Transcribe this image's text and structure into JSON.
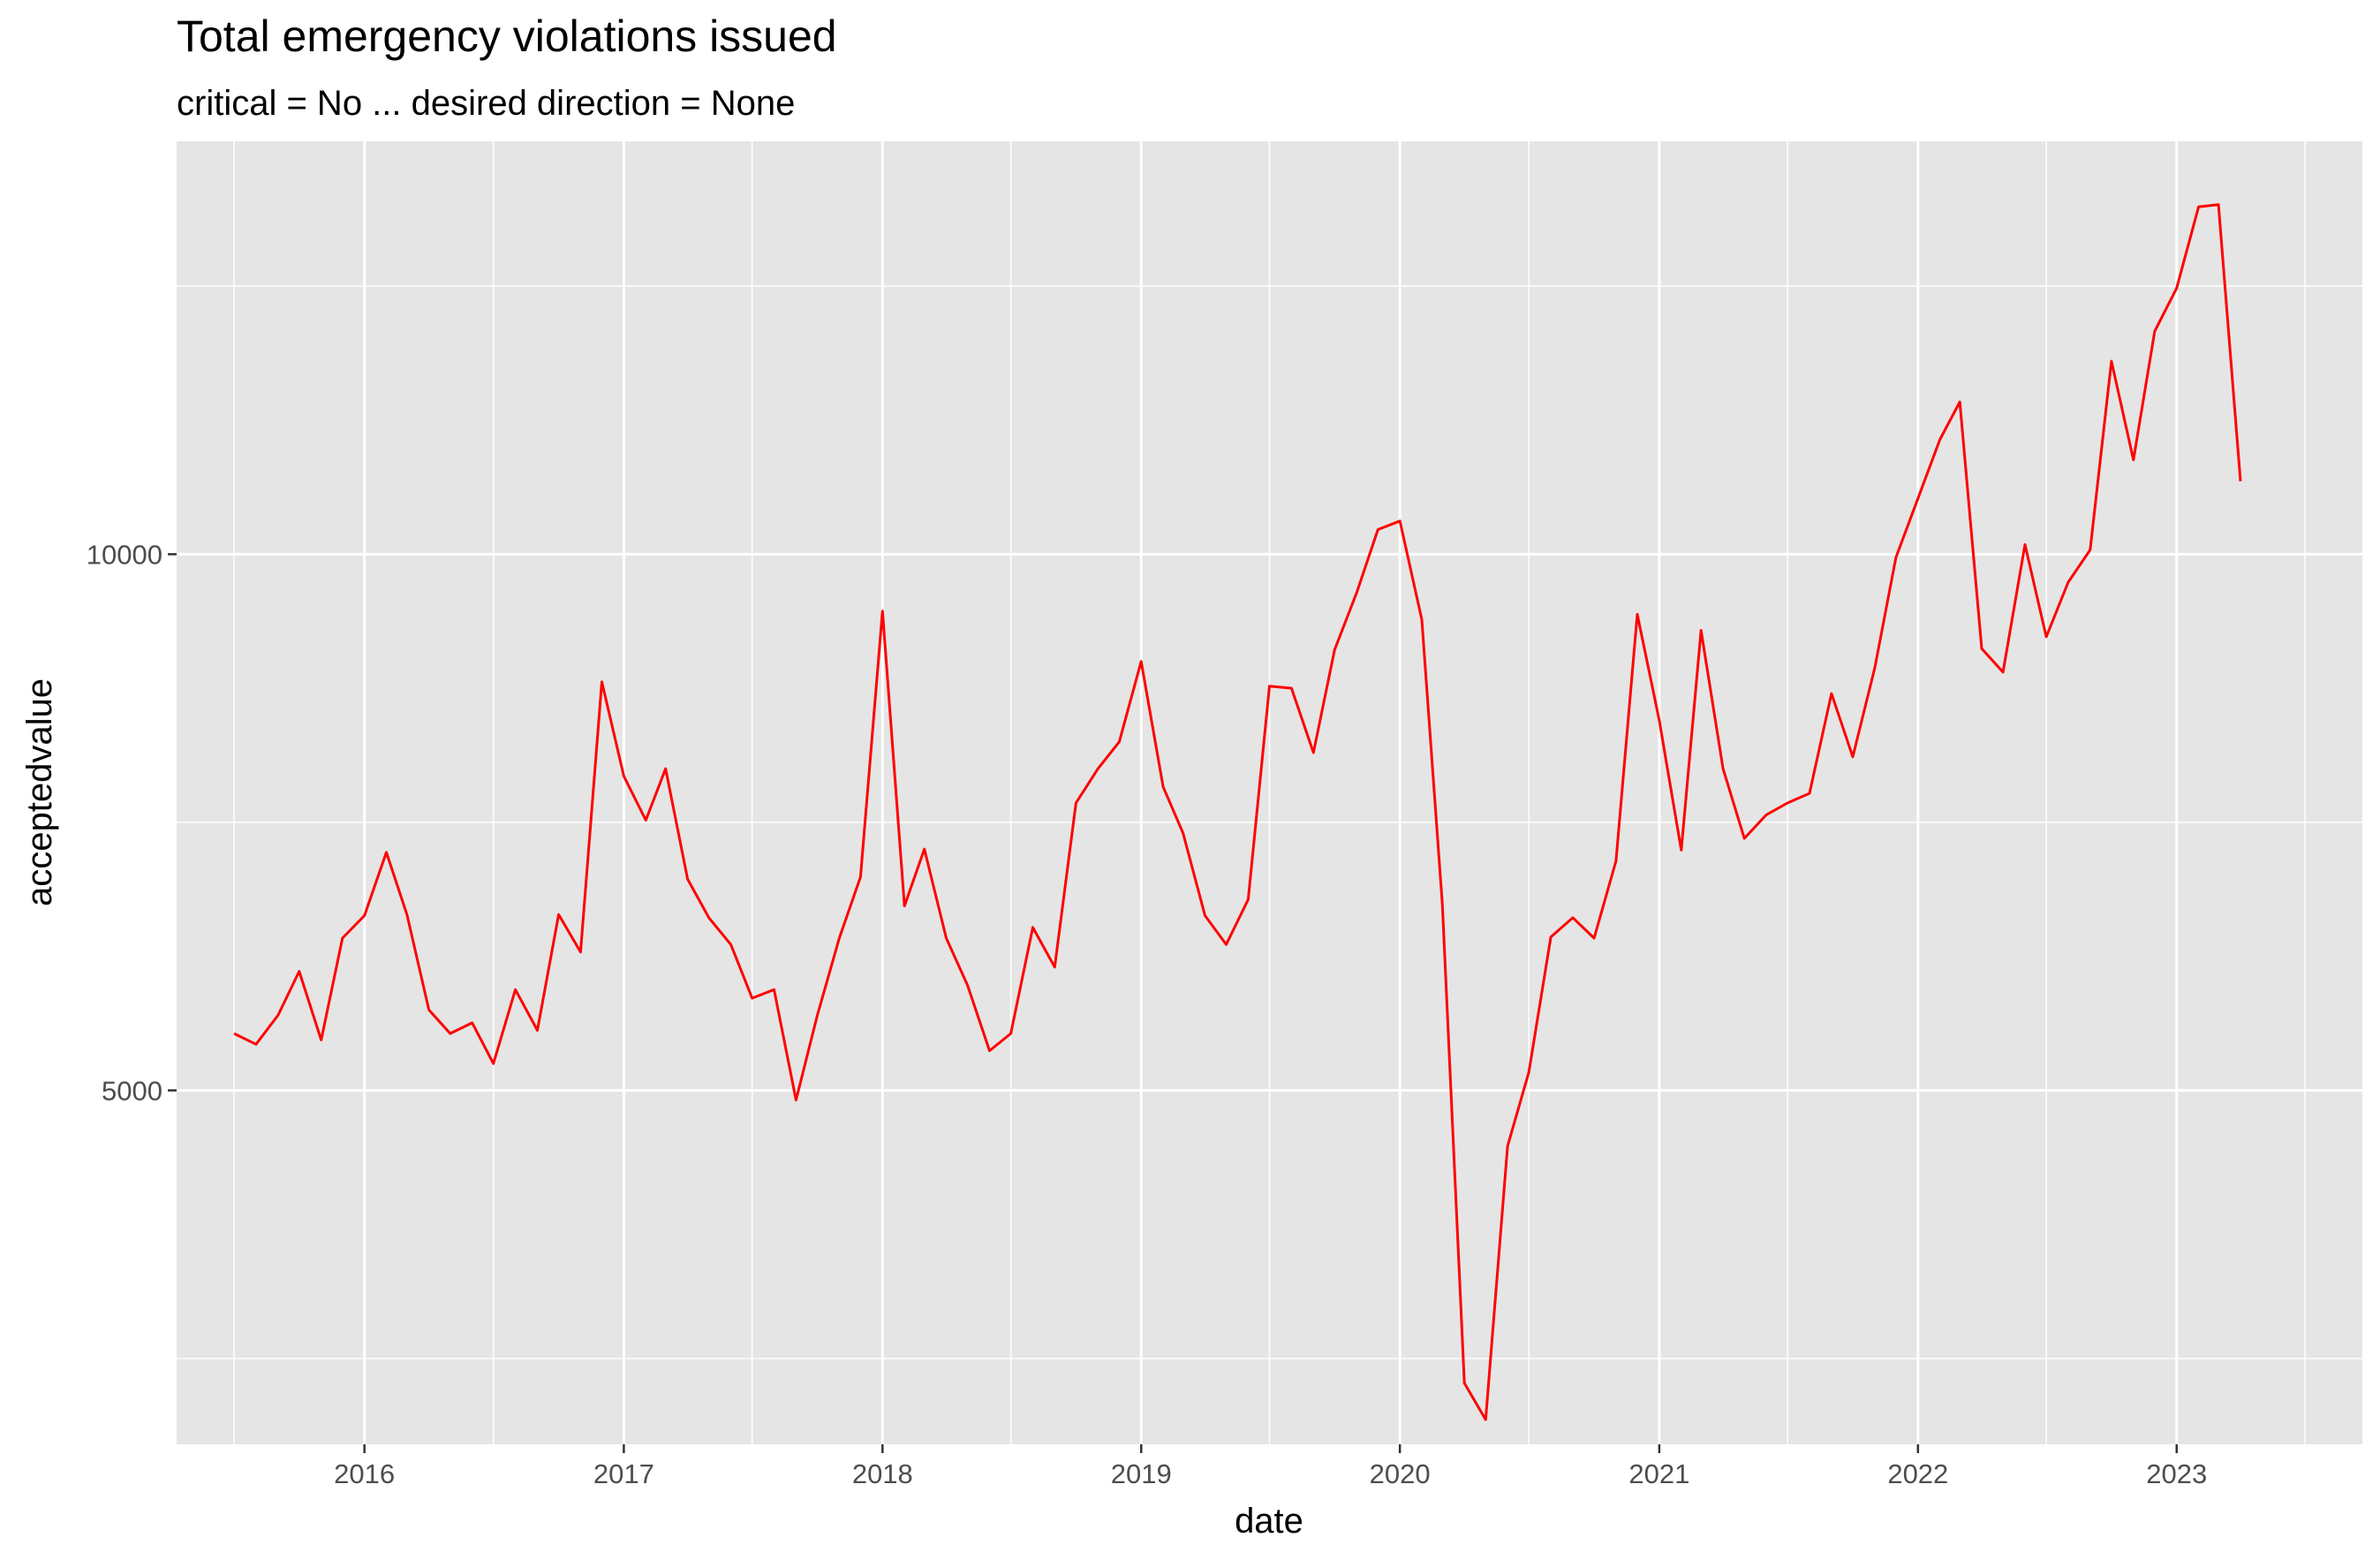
{
  "chart_data": {
    "type": "line",
    "title": "Total emergency violations issued",
    "subtitle": "critical = No ... desired direction = None",
    "xlabel": "date",
    "ylabel": "acceptedvalue",
    "x_ticks": [
      "2016",
      "2017",
      "2018",
      "2019",
      "2020",
      "2021",
      "2022",
      "2023"
    ],
    "y_ticks": [
      5000,
      10000
    ],
    "xlim": [
      "2015-04-11",
      "2023-09-20"
    ],
    "ylim": [
      1700,
      13850
    ],
    "grid": true,
    "legend": "none",
    "line_color": "#ff0000",
    "panel_color": "#e5e5e5",
    "series": [
      {
        "x": [
          "2015-07",
          "2015-08",
          "2015-09",
          "2015-10",
          "2015-11",
          "2015-12",
          "2016-01",
          "2016-02",
          "2016-03",
          "2016-04",
          "2016-05",
          "2016-06",
          "2016-07",
          "2016-08",
          "2016-09",
          "2016-10",
          "2016-11",
          "2016-12",
          "2017-01",
          "2017-02",
          "2017-03",
          "2017-04",
          "2017-05",
          "2017-06",
          "2017-07",
          "2017-08",
          "2017-09",
          "2017-10",
          "2017-11",
          "2017-12",
          "2018-01",
          "2018-02",
          "2018-03",
          "2018-04",
          "2018-05",
          "2018-06",
          "2018-07",
          "2018-08",
          "2018-09",
          "2018-10",
          "2018-11",
          "2018-12",
          "2019-01",
          "2019-02",
          "2019-03",
          "2019-04",
          "2019-05",
          "2019-06",
          "2019-07",
          "2019-08",
          "2019-09",
          "2019-10",
          "2019-11",
          "2019-12",
          "2020-01",
          "2020-02",
          "2020-03",
          "2020-04",
          "2020-05",
          "2020-06",
          "2020-07",
          "2020-08",
          "2020-09",
          "2020-10",
          "2020-11",
          "2020-12",
          "2021-01",
          "2021-02",
          "2021-03",
          "2021-04",
          "2021-05",
          "2021-06",
          "2021-07",
          "2021-08",
          "2021-09",
          "2021-10",
          "2021-11",
          "2021-12",
          "2022-01",
          "2022-02",
          "2022-03",
          "2022-04",
          "2022-05",
          "2022-06",
          "2022-07",
          "2022-08",
          "2022-09",
          "2022-10",
          "2022-11",
          "2022-12",
          "2023-01",
          "2023-02",
          "2023-03",
          "2023-04"
        ],
        "values": [
          5530,
          5430,
          5700,
          6110,
          5470,
          6420,
          6630,
          7220,
          6640,
          5750,
          5530,
          5630,
          5250,
          5940,
          5560,
          6640,
          6290,
          8810,
          7930,
          7520,
          8000,
          6970,
          6610,
          6360,
          5860,
          5940,
          4910,
          5700,
          6420,
          6990,
          9470,
          6720,
          7250,
          6420,
          5980,
          5370,
          5530,
          6520,
          6150,
          7680,
          8000,
          8250,
          9000,
          7830,
          7400,
          6630,
          6360,
          6780,
          8770,
          8750,
          8150,
          9110,
          9640,
          10230,
          10310,
          9390,
          6730,
          2270,
          1930,
          4480,
          5170,
          6430,
          6610,
          6420,
          7140,
          9440,
          8450,
          7240,
          9290,
          8000,
          7350,
          7570,
          7680,
          7770,
          8700,
          8110,
          8940,
          9970,
          10520,
          11070,
          11420,
          9120,
          8900,
          10090,
          9230,
          9740,
          10040,
          11800,
          10880,
          12080,
          12480,
          13240,
          13260,
          10680
        ]
      }
    ]
  }
}
